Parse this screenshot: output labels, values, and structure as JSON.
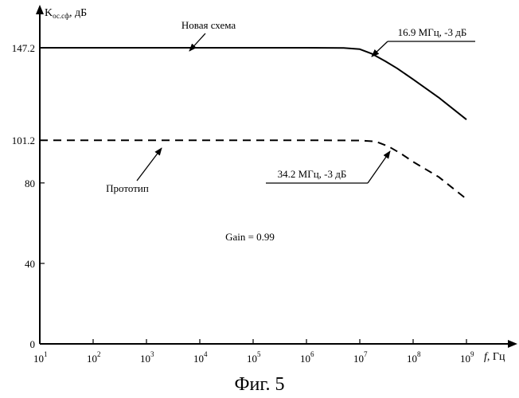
{
  "chart_data": {
    "type": "line",
    "y_axis_label": {
      "main": "K",
      "sub": "ос.сф",
      "unit": ", дБ"
    },
    "x_axis_label": {
      "var": "f",
      "unit": ", Гц"
    },
    "x_scale": "log",
    "xlim": [
      10,
      1000000000
    ],
    "ylim": [
      0,
      165
    ],
    "x_ticks": [
      {
        "base": "10",
        "exp": "1",
        "value": 10
      },
      {
        "base": "10",
        "exp": "2",
        "value": 100
      },
      {
        "base": "10",
        "exp": "3",
        "value": 1000
      },
      {
        "base": "10",
        "exp": "4",
        "value": 10000
      },
      {
        "base": "10",
        "exp": "5",
        "value": 100000
      },
      {
        "base": "10",
        "exp": "6",
        "value": 1000000
      },
      {
        "base": "10",
        "exp": "7",
        "value": 10000000
      },
      {
        "base": "10",
        "exp": "8",
        "value": 100000000
      },
      {
        "base": "10",
        "exp": "9",
        "value": 1000000000
      }
    ],
    "y_ticks": [
      {
        "label": "0",
        "value": 0
      },
      {
        "label": "40",
        "value": 40
      },
      {
        "label": "80",
        "value": 80
      },
      {
        "label": "101.2",
        "value": 101.2
      },
      {
        "label": "147.2",
        "value": 147.2
      }
    ],
    "series": [
      {
        "name": "Новая схема",
        "style": "solid",
        "x": [
          10,
          100,
          1000,
          10000,
          100000,
          1000000,
          5000000,
          10000000,
          16900000,
          30000000,
          50000000,
          100000000,
          300000000,
          1000000000
        ],
        "y": [
          147.2,
          147.2,
          147.2,
          147.2,
          147.2,
          147.2,
          147.1,
          146.5,
          144.2,
          140.5,
          137.0,
          131.5,
          122.5,
          111.5
        ]
      },
      {
        "name": "Прототип",
        "style": "dashed",
        "x": [
          10,
          100,
          1000,
          10000,
          100000,
          1000000,
          10000000,
          20000000,
          34200000,
          60000000,
          100000000,
          300000000,
          1000000000
        ],
        "y": [
          101.2,
          101.2,
          101.2,
          101.2,
          101.2,
          101.2,
          101.1,
          100.6,
          98.2,
          94.5,
          90.5,
          83.0,
          72.0
        ]
      }
    ],
    "annotations": [
      {
        "text": "Новая схема"
      },
      {
        "text": "16.9 МГц, -3 дБ"
      },
      {
        "text": "Прототип"
      },
      {
        "text": "34.2 МГц, -3 дБ"
      },
      {
        "text": "Gain = 0.99"
      }
    ],
    "caption": "Фиг. 5"
  }
}
